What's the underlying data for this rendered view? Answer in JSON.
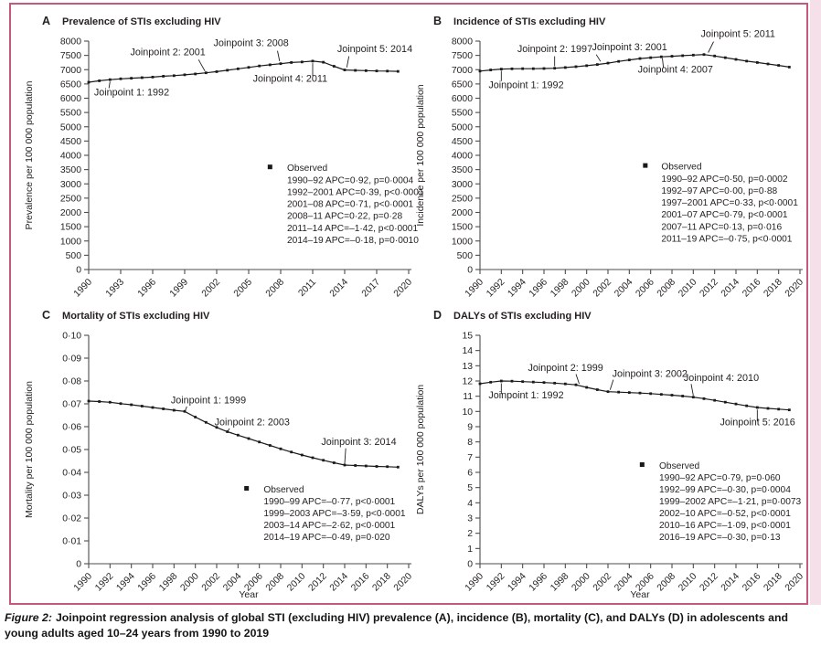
{
  "figure": {
    "caption_label": "Figure 2:",
    "caption_text": "Joinpoint regression analysis of global STI (excluding HIV) prevalence (A), incidence (B), mortality (C), and DALYs (D) in adolescents and young adults aged 10–24 years from 1990 to 2019",
    "border_color": "#c6577d",
    "page_edge_color": "#f5e0e9",
    "line_color": "#1a1a1a",
    "text_color": "#231f20"
  },
  "chart_data": [
    {
      "id": "A",
      "type": "line",
      "panel_letter": "A",
      "title": "Prevalence of STIs excluding HIV",
      "ylabel": "Prevalence per 100 000 population",
      "xlabel": "",
      "xlim": [
        1990,
        2020
      ],
      "ylim": [
        0,
        8000
      ],
      "grid": false,
      "yticks": [
        [
          0,
          "0"
        ],
        [
          500,
          "500"
        ],
        [
          1000,
          "1000"
        ],
        [
          1500,
          "1500"
        ],
        [
          2000,
          "2000"
        ],
        [
          2500,
          "2500"
        ],
        [
          3000,
          "3000"
        ],
        [
          3500,
          "3500"
        ],
        [
          4000,
          "4000"
        ],
        [
          4500,
          "4500"
        ],
        [
          5000,
          "5000"
        ],
        [
          5500,
          "5500"
        ],
        [
          6000,
          "6000"
        ],
        [
          6500,
          "6500"
        ],
        [
          7000,
          "7000"
        ],
        [
          7500,
          "7500"
        ],
        [
          8000,
          "8000"
        ]
      ],
      "xticks": [
        1990,
        1993,
        1996,
        1999,
        2002,
        2005,
        2008,
        2011,
        2014,
        2017,
        2020
      ],
      "x": [
        1990,
        1991,
        1992,
        1993,
        1994,
        1995,
        1996,
        1997,
        1998,
        1999,
        2000,
        2001,
        2002,
        2003,
        2004,
        2005,
        2006,
        2007,
        2008,
        2009,
        2010,
        2011,
        2012,
        2013,
        2014,
        2015,
        2016,
        2017,
        2018,
        2019
      ],
      "series": [
        {
          "name": "Observed",
          "values": [
            6560,
            6610,
            6650,
            6680,
            6700,
            6720,
            6740,
            6770,
            6790,
            6820,
            6850,
            6890,
            6930,
            6980,
            7030,
            7080,
            7130,
            7170,
            7210,
            7250,
            7270,
            7300,
            7260,
            7120,
            6990,
            6975,
            6965,
            6955,
            6950,
            6940
          ]
        }
      ],
      "joinpoints": [
        {
          "label": "Joinpoint 1: 1992",
          "tx": 1990.5,
          "ty": 6100,
          "leader": [
            1991.9,
            6350,
            1992.0,
            6580
          ]
        },
        {
          "label": "Joinpoint 2: 2001",
          "tx": 1993.9,
          "ty": 7500,
          "leader": [
            2000.3,
            7350,
            2000.9,
            6950
          ]
        },
        {
          "label": "Joinpoint 3: 2008",
          "tx": 2001.7,
          "ty": 7820,
          "leader": [
            2007.7,
            7660,
            2007.9,
            7300
          ]
        },
        {
          "label": "Joinpoint 4: 2011",
          "tx": 2005.4,
          "ty": 6580,
          "leader": [
            2011.0,
            6780,
            2011.0,
            7230
          ]
        },
        {
          "label": "Joinpoint 5: 2014",
          "tx": 2013.3,
          "ty": 7620,
          "leader": [
            2014.4,
            7470,
            2014.2,
            7080
          ]
        }
      ],
      "legend": {
        "marker_x": 2007.0,
        "text_x": 2008.6,
        "y0": 3450,
        "dy": 420,
        "lines": [
          "Observed",
          "1990–92 APC=0·92, p=0·0004",
          "1992–2001 APC=0·39, p<0·0001",
          "2001–08 APC=0·71, p<0·0001",
          "2008–11 APC=0·22, p=0·28",
          "2011–14 APC=–1·42, p<0·0001",
          "2014–19 APC=–0·18, p=0·0010"
        ]
      }
    },
    {
      "id": "B",
      "type": "line",
      "panel_letter": "B",
      "title": "Incidence of STIs excluding HIV",
      "ylabel": "Incidence per 100 000 population",
      "xlabel": "",
      "xlim": [
        1990,
        2020
      ],
      "ylim": [
        0,
        8000
      ],
      "grid": false,
      "yticks": [
        [
          0,
          "0"
        ],
        [
          500,
          "500"
        ],
        [
          1000,
          "1000"
        ],
        [
          1500,
          "1500"
        ],
        [
          2000,
          "2000"
        ],
        [
          2500,
          "2500"
        ],
        [
          3000,
          "3000"
        ],
        [
          3500,
          "3500"
        ],
        [
          4000,
          "4000"
        ],
        [
          4500,
          "4500"
        ],
        [
          5000,
          "5000"
        ],
        [
          5500,
          "5500"
        ],
        [
          6000,
          "6000"
        ],
        [
          6500,
          "6500"
        ],
        [
          7000,
          "7000"
        ],
        [
          7500,
          "7500"
        ],
        [
          8000,
          "8000"
        ]
      ],
      "xticks": [
        1990,
        1992,
        1994,
        1996,
        1998,
        2000,
        2002,
        2004,
        2006,
        2008,
        2010,
        2012,
        2014,
        2016,
        2018,
        2020
      ],
      "x": [
        1990,
        1991,
        1992,
        1993,
        1994,
        1995,
        1996,
        1997,
        1998,
        1999,
        2000,
        2001,
        2002,
        2003,
        2004,
        2005,
        2006,
        2007,
        2008,
        2009,
        2010,
        2011,
        2012,
        2013,
        2014,
        2015,
        2016,
        2017,
        2018,
        2019
      ],
      "series": [
        {
          "name": "Observed",
          "values": [
            6950,
            6990,
            7020,
            7030,
            7035,
            7035,
            7040,
            7050,
            7075,
            7105,
            7140,
            7180,
            7230,
            7290,
            7340,
            7390,
            7420,
            7450,
            7470,
            7490,
            7510,
            7530,
            7480,
            7420,
            7360,
            7300,
            7250,
            7200,
            7150,
            7090
          ]
        }
      ],
      "joinpoints": [
        {
          "label": "Joinpoint 1: 1992",
          "tx": 1990.8,
          "ty": 6350,
          "leader": [
            1992.0,
            6600,
            1992.0,
            6960
          ]
        },
        {
          "label": "Joinpoint 2: 1997",
          "tx": 1993.5,
          "ty": 7620,
          "leader": [
            1997.0,
            7470,
            1997.0,
            7120
          ]
        },
        {
          "label": "Joinpoint 3: 2001",
          "tx": 2000.5,
          "ty": 7680,
          "leader": [
            2000.9,
            7530,
            2001.3,
            7290
          ]
        },
        {
          "label": "Joinpoint 4: 2007",
          "tx": 2004.8,
          "ty": 6900,
          "leader": [
            2007.2,
            7070,
            2007.1,
            7400
          ]
        },
        {
          "label": "Joinpoint 5: 2011",
          "tx": 2010.7,
          "ty": 8150,
          "leader": [
            2011.9,
            7980,
            2011.4,
            7600
          ]
        }
      ],
      "legend": {
        "marker_x": 2005.5,
        "text_x": 2007.0,
        "y0": 3500,
        "dy": 420,
        "lines": [
          "Observed",
          "1990–92 APC=0·50, p=0·0002",
          "1992–97 APC=0·00, p=0·88",
          "1997–2001 APC=0·33, p<0·0001",
          "2001–07 APC=0·79, p<0·0001",
          "2007–11 APC=0·13, p=0·016",
          "2011–19 APC=–0·75, p<0·0001"
        ]
      }
    },
    {
      "id": "C",
      "type": "line",
      "panel_letter": "C",
      "title": "Mortality of STIs excluding HIV",
      "ylabel": "Mortality per 100 000 population",
      "xlabel": "Year",
      "xlim": [
        1990,
        2020
      ],
      "ylim": [
        0,
        0.1
      ],
      "grid": false,
      "yticks": [
        [
          0,
          "0"
        ],
        [
          0.01,
          "0·01"
        ],
        [
          0.02,
          "0·02"
        ],
        [
          0.03,
          "0·03"
        ],
        [
          0.04,
          "0·04"
        ],
        [
          0.05,
          "0·05"
        ],
        [
          0.06,
          "0·06"
        ],
        [
          0.07,
          "0·07"
        ],
        [
          0.08,
          "0·08"
        ],
        [
          0.09,
          "0·09"
        ],
        [
          0.1,
          "0·10"
        ]
      ],
      "xticks": [
        1990,
        1992,
        1994,
        1996,
        1998,
        2000,
        2002,
        2004,
        2006,
        2008,
        2010,
        2012,
        2014,
        2016,
        2018,
        2020
      ],
      "x": [
        1990,
        1991,
        1992,
        1993,
        1994,
        1995,
        1996,
        1997,
        1998,
        1999,
        2000,
        2001,
        2002,
        2003,
        2004,
        2005,
        2006,
        2007,
        2008,
        2009,
        2010,
        2011,
        2012,
        2013,
        2014,
        2015,
        2016,
        2017,
        2018,
        2019
      ],
      "series": [
        {
          "name": "Observed",
          "values": [
            0.0712,
            0.071,
            0.0707,
            0.0701,
            0.0696,
            0.069,
            0.0684,
            0.0678,
            0.0672,
            0.0667,
            0.0642,
            0.0619,
            0.0597,
            0.0578,
            0.0563,
            0.0548,
            0.0533,
            0.0518,
            0.0503,
            0.0489,
            0.0476,
            0.0464,
            0.0453,
            0.0442,
            0.0432,
            0.043,
            0.0428,
            0.0426,
            0.0425,
            0.0423
          ]
        }
      ],
      "joinpoints": [
        {
          "label": "Joinpoint 1: 1999",
          "tx": 1997.7,
          "ty": 0.0702,
          "leader": [
            1999.2,
            0.0688,
            1999.05,
            0.067
          ]
        },
        {
          "label": "Joinpoint 2: 2003",
          "tx": 2001.8,
          "ty": 0.0607,
          "leader": [
            2003.2,
            0.0592,
            2003.05,
            0.0581
          ]
        },
        {
          "label": "Joinpoint 3: 2014",
          "tx": 2011.8,
          "ty": 0.052,
          "leader": [
            2014.1,
            0.0505,
            2014.0,
            0.0438
          ]
        }
      ],
      "legend": {
        "marker_x": 2004.8,
        "text_x": 2006.4,
        "y0": 0.0312,
        "dy": 0.0052,
        "lines": [
          "Observed",
          "1990–99 APC=–0·77, p<0·0001",
          "1999–2003 APC=–3·59, p<0·0001",
          "2003–14 APC=–2·62, p<0·0001",
          "2014–19 APC=–0·49, p=0·020"
        ]
      }
    },
    {
      "id": "D",
      "type": "line",
      "panel_letter": "D",
      "title": "DALYs of STIs excluding HIV",
      "ylabel": "DALYs per 100 000 population",
      "xlabel": "Year",
      "xlim": [
        1990,
        2020
      ],
      "ylim": [
        0,
        15
      ],
      "grid": false,
      "yticks": [
        [
          0,
          "0"
        ],
        [
          1,
          "1"
        ],
        [
          2,
          "2"
        ],
        [
          3,
          "3"
        ],
        [
          4,
          "4"
        ],
        [
          5,
          "5"
        ],
        [
          6,
          "6"
        ],
        [
          7,
          "7"
        ],
        [
          8,
          "8"
        ],
        [
          9,
          "9"
        ],
        [
          10,
          "10"
        ],
        [
          11,
          "11"
        ],
        [
          12,
          "12"
        ],
        [
          13,
          "13"
        ],
        [
          14,
          "14"
        ],
        [
          15,
          "15"
        ]
      ],
      "xticks": [
        1990,
        1992,
        1994,
        1996,
        1998,
        2000,
        2002,
        2004,
        2006,
        2008,
        2010,
        2012,
        2014,
        2016,
        2018,
        2020
      ],
      "x": [
        1990,
        1991,
        1992,
        1993,
        1994,
        1995,
        1996,
        1997,
        1998,
        1999,
        2000,
        2001,
        2002,
        2003,
        2004,
        2005,
        2006,
        2007,
        2008,
        2009,
        2010,
        2011,
        2012,
        2013,
        2014,
        2015,
        2016,
        2017,
        2018,
        2019
      ],
      "series": [
        {
          "name": "Observed",
          "values": [
            11.82,
            11.92,
            12.0,
            11.99,
            11.96,
            11.93,
            11.9,
            11.86,
            11.81,
            11.75,
            11.58,
            11.43,
            11.3,
            11.27,
            11.24,
            11.21,
            11.17,
            11.12,
            11.07,
            11.01,
            10.94,
            10.84,
            10.73,
            10.61,
            10.49,
            10.37,
            10.26,
            10.2,
            10.15,
            10.1
          ]
        }
      ],
      "joinpoints": [
        {
          "label": "Joinpoint 1: 1992",
          "tx": 1990.8,
          "ty": 10.85,
          "leader": [
            1992.0,
            11.15,
            1992.0,
            11.85
          ]
        },
        {
          "label": "Joinpoint 2: 1999",
          "tx": 1994.5,
          "ty": 12.65,
          "leader": [
            1999.0,
            12.45,
            1999.3,
            11.82
          ]
        },
        {
          "label": "Joinpoint 3: 2002",
          "tx": 2002.4,
          "ty": 12.28,
          "leader": [
            2002.5,
            12.08,
            2002.2,
            11.42
          ]
        },
        {
          "label": "Joinpoint 4: 2010",
          "tx": 2009.1,
          "ty": 12.0,
          "leader": [
            2009.8,
            11.8,
            2010.0,
            11.05
          ]
        },
        {
          "label": "Joinpoint 5: 2016",
          "tx": 2012.5,
          "ty": 9.1,
          "leader": [
            2016.0,
            9.35,
            2016.0,
            10.12
          ]
        }
      ],
      "legend": {
        "marker_x": 2005.2,
        "text_x": 2006.8,
        "y0": 6.24,
        "dy": 0.78,
        "lines": [
          "Observed",
          "1990–92 APC=0·79, p=0·060",
          "1992–99 APC=–0·30, p=0·0004",
          "1999–2002 APC=–1·21, p=0·0073",
          "2002–10 APC=–0·52, p<0·0001",
          "2010–16 APC=–1·09, p<0·0001",
          "2016–19 APC=–0·30, p=0·13"
        ]
      }
    }
  ]
}
